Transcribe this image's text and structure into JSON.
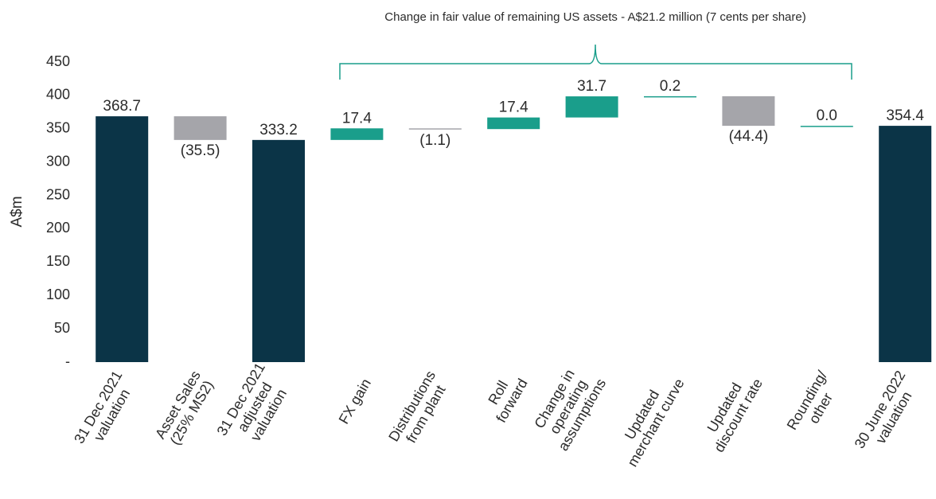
{
  "chart_data": {
    "type": "waterfall",
    "annotation": "Change in fair value of remaining US assets - A$21.2 million (7 cents per share)",
    "y_label": "A$m",
    "categories": [
      [
        "31 Dec 2021",
        "valuation"
      ],
      [
        "Asset Sales",
        "(25% MS2)"
      ],
      [
        "31 Dec 2021",
        "adjusted",
        "valuation"
      ],
      [
        "FX gain"
      ],
      [
        "Distributions",
        "from plant"
      ],
      [
        "Roll",
        "forward"
      ],
      [
        "Change in",
        "operating",
        "assumptions"
      ],
      [
        "Updated",
        "merchant curve"
      ],
      [
        "Updated",
        "discount rate"
      ],
      [
        "Rounding/",
        "other"
      ],
      [
        "30 June 2022",
        "valuation"
      ]
    ],
    "values": [
      368.7,
      -35.5,
      333.2,
      17.4,
      -1.1,
      17.4,
      31.7,
      0.2,
      -44.4,
      0.0,
      354.4
    ],
    "value_labels": [
      "368.7",
      "(35.5)",
      "333.2",
      "17.4",
      "(1.1)",
      "17.4",
      "31.7",
      "0.2",
      "(44.4)",
      "0.0",
      "354.4"
    ],
    "measures": [
      "total",
      "relative",
      "total",
      "relative",
      "relative",
      "relative",
      "relative",
      "relative",
      "relative",
      "relative",
      "total"
    ],
    "colors": {
      "total": "#0b3447",
      "increasing": "#1a9e8b",
      "decreasing": "#a5a5aa"
    },
    "ylim": [
      0,
      450
    ],
    "yticks": [
      {
        "value": 0,
        "label": "-"
      },
      50,
      100,
      150,
      200,
      250,
      300,
      350,
      400,
      450
    ],
    "grid": false
  }
}
